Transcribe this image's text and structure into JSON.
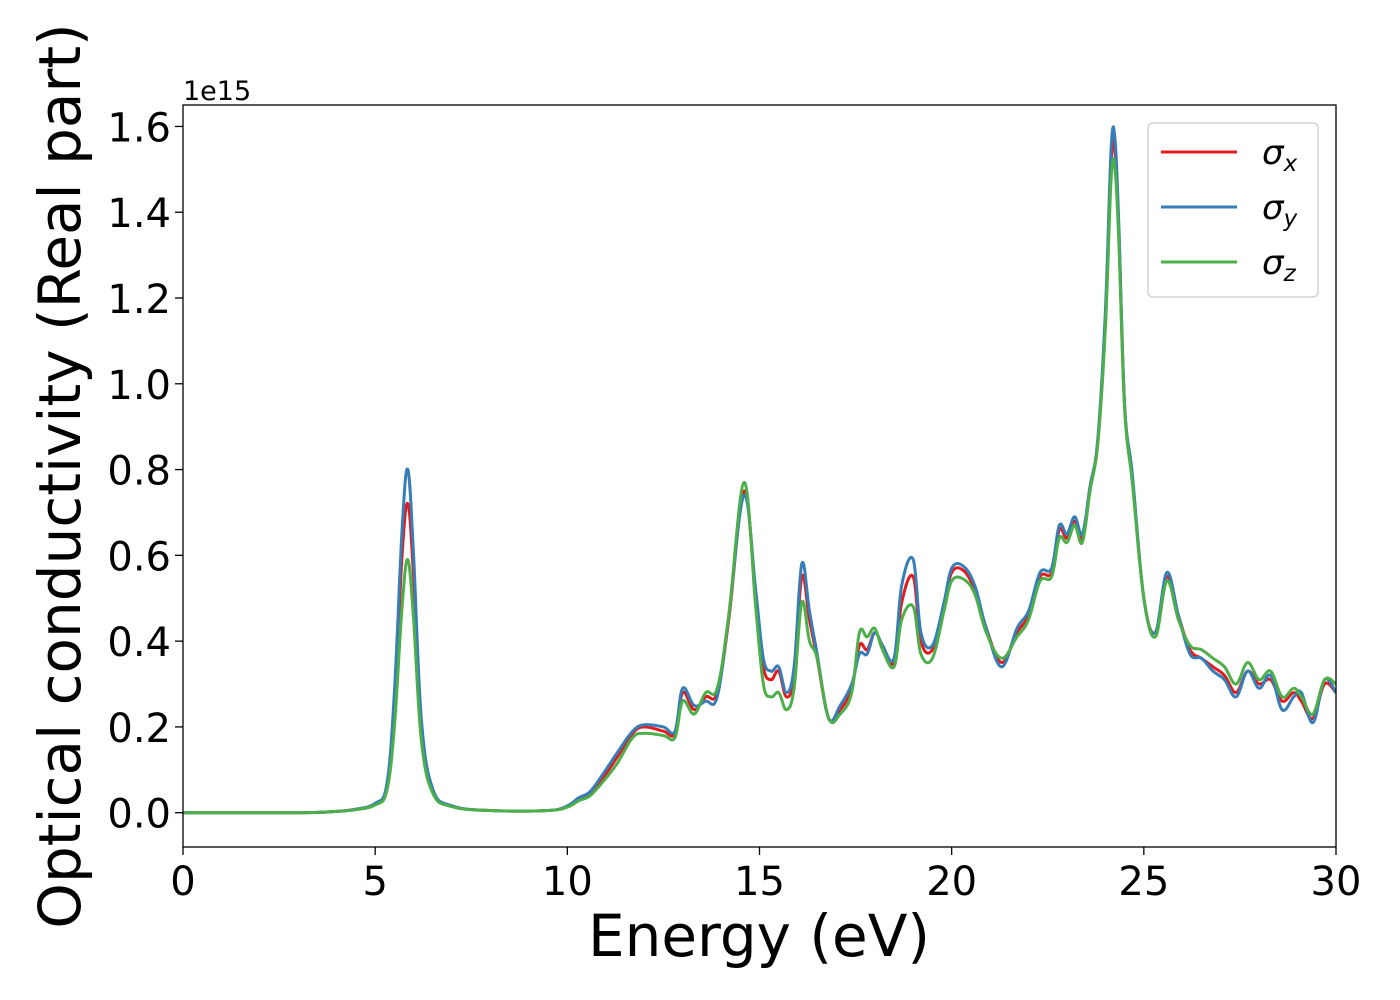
{
  "chart_data": {
    "type": "line",
    "xlabel": "Energy (eV)",
    "ylabel": "Optical conductivity (Real part)",
    "offset_label": "1e15",
    "xlim": [
      0,
      30
    ],
    "ylim": [
      -0.08,
      1.65
    ],
    "x_ticks": [
      0,
      5,
      10,
      15,
      20,
      25,
      30
    ],
    "y_ticks": [
      0.0,
      0.2,
      0.4,
      0.6,
      0.8,
      1.0,
      1.2,
      1.4,
      1.6
    ],
    "x_tick_labels": [
      "0",
      "5",
      "10",
      "15",
      "20",
      "25",
      "30"
    ],
    "y_tick_labels": [
      "0.0",
      "0.2",
      "0.4",
      "0.6",
      "0.8",
      "1.0",
      "1.2",
      "1.4",
      "1.6"
    ],
    "legend_position": "upper-right",
    "grid": false,
    "x": [
      0,
      3,
      4,
      4.5,
      5,
      5.3,
      5.5,
      5.7,
      5.85,
      6.0,
      6.2,
      6.5,
      7.0,
      8.0,
      9.5,
      10.0,
      10.3,
      10.6,
      11.0,
      11.3,
      11.7,
      12.0,
      12.5,
      12.8,
      13.0,
      13.3,
      13.6,
      13.9,
      14.2,
      14.6,
      14.9,
      15.1,
      15.3,
      15.5,
      15.7,
      15.9,
      16.1,
      16.3,
      16.5,
      16.8,
      17.1,
      17.4,
      17.6,
      17.8,
      18.0,
      18.2,
      18.5,
      18.7,
      19.0,
      19.2,
      19.5,
      19.8,
      20.0,
      20.3,
      20.6,
      20.9,
      21.3,
      21.7,
      22.0,
      22.3,
      22.6,
      22.8,
      23.0,
      23.2,
      23.4,
      23.6,
      23.8,
      24.0,
      24.15,
      24.25,
      24.35,
      24.5,
      24.7,
      25.0,
      25.3,
      25.6,
      25.9,
      26.2,
      26.5,
      26.8,
      27.1,
      27.4,
      27.7,
      28.0,
      28.3,
      28.6,
      28.9,
      29.1,
      29.4,
      29.7,
      30.0
    ],
    "series": [
      {
        "name": "σx",
        "color": "#e41a1c",
        "values": [
          0,
          0,
          0.003,
          0.008,
          0.02,
          0.06,
          0.25,
          0.6,
          0.72,
          0.55,
          0.2,
          0.05,
          0.015,
          0.005,
          0.005,
          0.015,
          0.03,
          0.045,
          0.09,
          0.13,
          0.185,
          0.2,
          0.19,
          0.185,
          0.28,
          0.24,
          0.27,
          0.28,
          0.45,
          0.75,
          0.5,
          0.34,
          0.31,
          0.33,
          0.27,
          0.32,
          0.55,
          0.45,
          0.36,
          0.22,
          0.24,
          0.29,
          0.39,
          0.38,
          0.42,
          0.39,
          0.35,
          0.49,
          0.55,
          0.4,
          0.38,
          0.48,
          0.56,
          0.565,
          0.52,
          0.43,
          0.35,
          0.42,
          0.46,
          0.55,
          0.56,
          0.66,
          0.64,
          0.68,
          0.64,
          0.76,
          0.86,
          1.15,
          1.52,
          1.54,
          1.35,
          0.95,
          0.78,
          0.5,
          0.42,
          0.55,
          0.46,
          0.38,
          0.36,
          0.34,
          0.32,
          0.28,
          0.33,
          0.3,
          0.31,
          0.26,
          0.28,
          0.26,
          0.22,
          0.3,
          0.28
        ]
      },
      {
        "name": "σy",
        "color": "#377eb8",
        "values": [
          0,
          0,
          0.003,
          0.008,
          0.022,
          0.065,
          0.28,
          0.66,
          0.8,
          0.6,
          0.22,
          0.055,
          0.016,
          0.005,
          0.005,
          0.016,
          0.035,
          0.05,
          0.1,
          0.14,
          0.19,
          0.205,
          0.2,
          0.19,
          0.29,
          0.25,
          0.26,
          0.27,
          0.46,
          0.74,
          0.52,
          0.36,
          0.33,
          0.34,
          0.28,
          0.34,
          0.58,
          0.47,
          0.37,
          0.22,
          0.25,
          0.3,
          0.37,
          0.37,
          0.42,
          0.39,
          0.36,
          0.53,
          0.59,
          0.42,
          0.39,
          0.49,
          0.57,
          0.575,
          0.53,
          0.43,
          0.34,
          0.43,
          0.47,
          0.56,
          0.57,
          0.67,
          0.65,
          0.69,
          0.65,
          0.76,
          0.87,
          1.17,
          1.55,
          1.57,
          1.37,
          0.95,
          0.79,
          0.5,
          0.42,
          0.56,
          0.46,
          0.37,
          0.36,
          0.33,
          0.31,
          0.27,
          0.33,
          0.29,
          0.32,
          0.24,
          0.27,
          0.28,
          0.21,
          0.31,
          0.28
        ]
      },
      {
        "name": "σz",
        "color": "#4daf4a",
        "values": [
          0,
          0,
          0.003,
          0.007,
          0.018,
          0.05,
          0.2,
          0.48,
          0.59,
          0.45,
          0.17,
          0.045,
          0.014,
          0.005,
          0.005,
          0.013,
          0.028,
          0.04,
          0.08,
          0.115,
          0.175,
          0.185,
          0.18,
          0.175,
          0.26,
          0.23,
          0.28,
          0.29,
          0.46,
          0.77,
          0.48,
          0.3,
          0.27,
          0.28,
          0.24,
          0.29,
          0.49,
          0.4,
          0.36,
          0.22,
          0.23,
          0.28,
          0.42,
          0.41,
          0.43,
          0.38,
          0.34,
          0.45,
          0.48,
          0.37,
          0.36,
          0.47,
          0.54,
          0.545,
          0.51,
          0.42,
          0.36,
          0.41,
          0.45,
          0.54,
          0.55,
          0.64,
          0.63,
          0.67,
          0.63,
          0.75,
          0.86,
          1.13,
          1.48,
          1.5,
          1.33,
          0.94,
          0.77,
          0.5,
          0.41,
          0.54,
          0.45,
          0.39,
          0.38,
          0.36,
          0.34,
          0.3,
          0.35,
          0.31,
          0.33,
          0.27,
          0.29,
          0.27,
          0.23,
          0.31,
          0.3
        ]
      }
    ]
  },
  "legend": {
    "entries": [
      {
        "symbol": "σ",
        "sub": "x"
      },
      {
        "symbol": "σ",
        "sub": "y"
      },
      {
        "symbol": "σ",
        "sub": "z"
      }
    ]
  }
}
